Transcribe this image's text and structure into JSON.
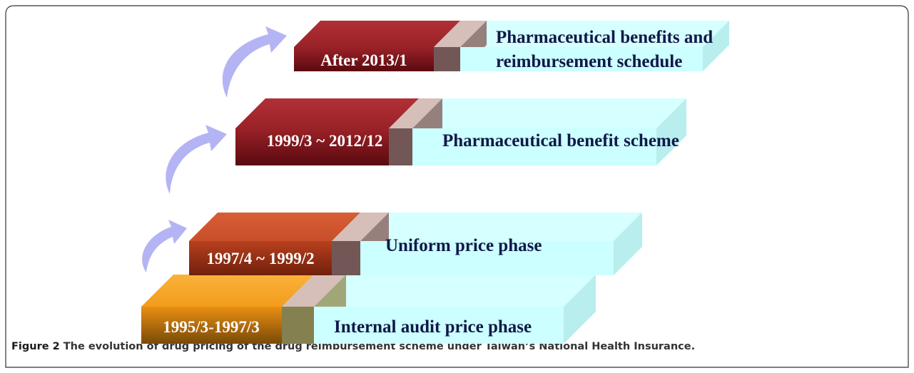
{
  "stages": [
    {
      "period": "1995/3-1997/3",
      "phase": [
        "Internal audit price phase"
      ]
    },
    {
      "period": "1997/4 ~ 1999/2",
      "phase": [
        "Uniform price phase"
      ]
    },
    {
      "period": "1999/3 ~ 2012/12",
      "phase": [
        "Pharmaceutical benefit scheme"
      ]
    },
    {
      "period": "After 2013/1",
      "phase": [
        "Pharmaceutical benefits and",
        "reimbursement schedule"
      ]
    }
  ],
  "caption": {
    "label": "Figure 2",
    "text": " The evolution of drug pricing of the drug reimbursement scheme under Taiwan’s National Health Insurance."
  }
}
